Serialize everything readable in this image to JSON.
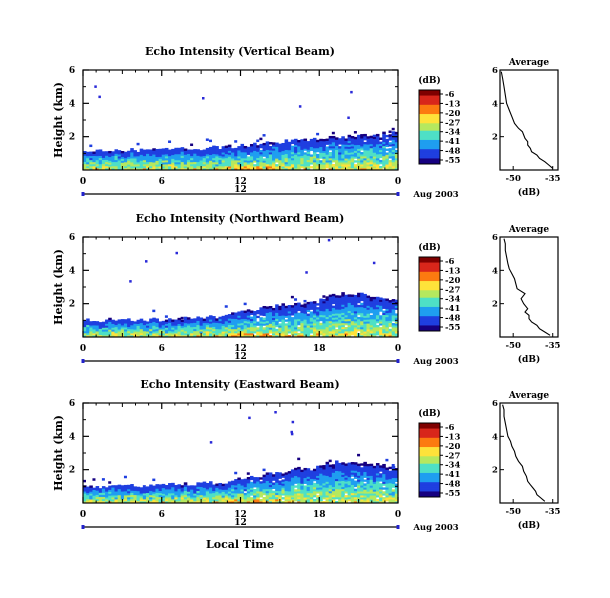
{
  "chart_data": {
    "type": "heatmap",
    "colorbar": {
      "unit": "(dB)",
      "ticks": [
        "-6",
        "-13",
        "-20",
        "-27",
        "-34",
        "-41",
        "-48",
        "-55"
      ],
      "range": [
        -58,
        -4
      ],
      "colormap": [
        "#7f0000",
        "#d8261b",
        "#fc7a10",
        "#fee23a",
        "#b5e85f",
        "#4ee0c6",
        "#1f9ef0",
        "#1f3fe0",
        "#160080"
      ]
    },
    "x_axis": {
      "ticks": [
        "0",
        "6",
        "12",
        "18",
        "0"
      ],
      "minor_ticks": [
        "3",
        "9",
        "15",
        "21"
      ],
      "range": [
        0,
        24
      ],
      "bar_label": "12",
      "date_label": "Aug 2003",
      "xlabel": "Local Time"
    },
    "y_axis": {
      "ylabel": "Height (km)",
      "ticks": [
        "6",
        "4",
        "2"
      ],
      "range": [
        0,
        6
      ]
    },
    "panels": [
      {
        "title": "Echo Intensity (Vertical Beam)",
        "layer_top_km": [
          1.1,
          1.15,
          1.2,
          1.2,
          1.2,
          1.25,
          1.25,
          1.3,
          1.3,
          1.3,
          1.35,
          1.4,
          1.45,
          1.55,
          1.65,
          1.7,
          1.75,
          1.8,
          1.9,
          1.95,
          2.0,
          2.05,
          2.15,
          2.2,
          2.25
        ],
        "profile_title": "Average",
        "profile_xlabel": "(dB)",
        "profile_xticks": [
          "-50",
          "-35"
        ],
        "profile_yticks": [
          "6",
          "4",
          "2"
        ],
        "profile": {
          "height_km": [
            0.1,
            0.3,
            0.5,
            0.7,
            0.9,
            1.1,
            1.3,
            1.5,
            1.7,
            1.9,
            2.1,
            2.3,
            2.5,
            2.8,
            3.2,
            3.6,
            4.0,
            4.5,
            5.0,
            5.5,
            5.9
          ],
          "db": [
            -35,
            -36.5,
            -38,
            -40,
            -41,
            -43,
            -43.5,
            -44.5,
            -44.5,
            -45.5,
            -46,
            -46.5,
            -48,
            -49.5,
            -50.5,
            -51.5,
            -52.5,
            -53,
            -53.5,
            -54,
            -54.5
          ]
        }
      },
      {
        "title": "Echo Intensity (Northward Beam)",
        "layer_top_km": [
          1.0,
          1.0,
          1.05,
          1.05,
          1.05,
          1.05,
          1.05,
          1.1,
          1.1,
          1.15,
          1.2,
          1.3,
          1.5,
          1.7,
          1.8,
          1.9,
          2.0,
          2.1,
          2.3,
          2.5,
          2.6,
          2.6,
          2.4,
          2.3,
          2.2
        ],
        "profile_title": "Average",
        "profile_xlabel": "(dB)",
        "profile_xticks": [
          "-50",
          "-35"
        ],
        "profile_yticks": [
          "6",
          "4",
          "2"
        ],
        "profile": {
          "height_km": [
            0.1,
            0.3,
            0.5,
            0.7,
            0.9,
            1.1,
            1.3,
            1.5,
            1.7,
            2.0,
            2.3,
            2.6,
            2.9,
            3.2,
            3.5,
            3.8,
            4.1,
            4.4,
            4.8,
            5.2,
            5.6,
            5.9
          ],
          "db": [
            -36,
            -38,
            -40,
            -41,
            -43,
            -44,
            -44,
            -45.5,
            -44.5,
            -46,
            -47,
            -45.5,
            -48.5,
            -49,
            -49.5,
            -50.5,
            -51.5,
            -52,
            -52.5,
            -53,
            -53,
            -53.5
          ]
        }
      },
      {
        "title": "Echo Intensity (Eastward Beam)",
        "layer_top_km": [
          1.0,
          1.0,
          1.05,
          1.05,
          1.05,
          1.1,
          1.1,
          1.1,
          1.15,
          1.2,
          1.2,
          1.3,
          1.45,
          1.6,
          1.75,
          1.85,
          2.0,
          2.15,
          2.3,
          2.45,
          2.5,
          2.4,
          2.3,
          2.25,
          2.2
        ],
        "profile_title": "Average",
        "profile_xlabel": "(dB)",
        "profile_xticks": [
          "-50",
          "-35"
        ],
        "profile_yticks": [
          "6",
          "4",
          "2"
        ],
        "profile": {
          "height_km": [
            0.1,
            0.3,
            0.5,
            0.7,
            0.9,
            1.1,
            1.3,
            1.6,
            1.9,
            2.2,
            2.5,
            2.8,
            3.1,
            3.4,
            3.7,
            4.0,
            4.4,
            4.8,
            5.2,
            5.6,
            5.9
          ],
          "db": [
            -38,
            -39.5,
            -41,
            -41.5,
            -42.5,
            -43.5,
            -44.5,
            -45,
            -46,
            -46.5,
            -48,
            -49,
            -49.5,
            -50.5,
            -51,
            -52,
            -52.5,
            -53,
            -53.5,
            -53.5,
            -54
          ]
        }
      }
    ]
  }
}
